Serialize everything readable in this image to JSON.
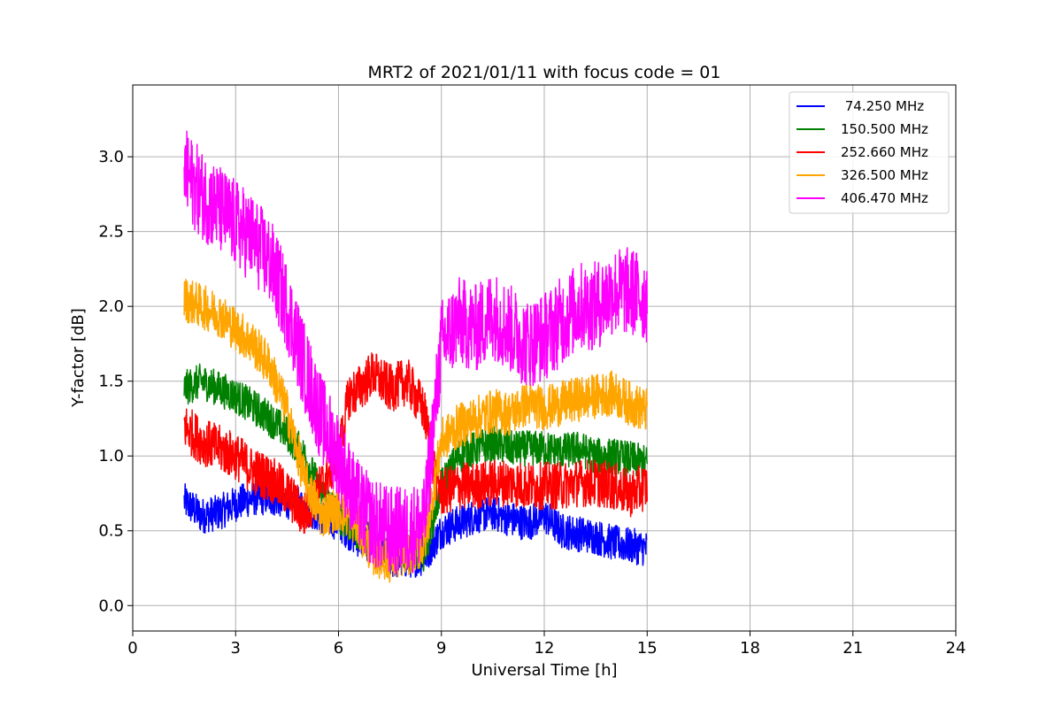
{
  "chart_data": {
    "type": "line",
    "title": "MRT2 of 2021/01/11 with focus code = 01",
    "xlabel": "Universal Time [h]",
    "ylabel": "Y-factor [dB]",
    "xlim": [
      0,
      24
    ],
    "ylim": [
      -0.17,
      3.48
    ],
    "xticks": [
      0,
      3,
      6,
      9,
      12,
      15,
      18,
      21,
      24
    ],
    "xtick_labels": [
      "0",
      "3",
      "6",
      "9",
      "12",
      "15",
      "18",
      "21",
      "24"
    ],
    "yticks": [
      0.0,
      0.5,
      1.0,
      1.5,
      2.0,
      2.5,
      3.0
    ],
    "ytick_labels": [
      "0.0",
      "0.5",
      "1.0",
      "1.5",
      "2.0",
      "2.5",
      "3.0"
    ],
    "grid": true,
    "legend_position": "upper right",
    "series": [
      {
        "name": " 74.250 MHz",
        "color": "#0000ff",
        "x": [
          1.5,
          2,
          2.5,
          3,
          3.5,
          4,
          4.5,
          5,
          5.5,
          6,
          6.5,
          7,
          7.5,
          8,
          8.5,
          9,
          9.5,
          10,
          10.5,
          11,
          11.5,
          12,
          12.5,
          13,
          13.5,
          14,
          14.5,
          15
        ],
        "y": [
          0.7,
          0.6,
          0.62,
          0.68,
          0.72,
          0.72,
          0.7,
          0.66,
          0.6,
          0.55,
          0.45,
          0.4,
          0.3,
          0.3,
          0.32,
          0.5,
          0.55,
          0.6,
          0.62,
          0.58,
          0.55,
          0.6,
          0.5,
          0.48,
          0.46,
          0.42,
          0.4,
          0.38
        ],
        "noise": 0.12
      },
      {
        "name": "150.500 MHz",
        "color": "#008000",
        "x": [
          1.5,
          2,
          2.5,
          3,
          3.5,
          4,
          4.5,
          5,
          5.5,
          6,
          6.5,
          7,
          7.5,
          8,
          8.5,
          9,
          9.5,
          10,
          10.5,
          11,
          11.5,
          12,
          12.5,
          13,
          13.5,
          14,
          14.5,
          15
        ],
        "y": [
          1.45,
          1.5,
          1.45,
          1.4,
          1.33,
          1.25,
          1.15,
          1.0,
          0.75,
          0.6,
          0.5,
          0.45,
          0.35,
          0.35,
          0.35,
          0.8,
          1.0,
          1.05,
          1.08,
          1.05,
          1.05,
          1.05,
          1.03,
          1.05,
          1.0,
          1.0,
          0.98,
          0.95
        ],
        "noise": 0.12
      },
      {
        "name": "252.660 MHz",
        "color": "#ff0000",
        "x": [
          1.5,
          2,
          2.5,
          3,
          3.5,
          4,
          4.5,
          5,
          5.5,
          6,
          6.3,
          6.6,
          7,
          7.5,
          8,
          8.5,
          8.8,
          9,
          9.5,
          10,
          10.5,
          11,
          11.5,
          12,
          12.5,
          13,
          13.5,
          14,
          14.5,
          15
        ],
        "y": [
          1.2,
          1.1,
          1.05,
          1.0,
          0.9,
          0.85,
          0.75,
          0.6,
          0.8,
          1.0,
          1.4,
          1.45,
          1.55,
          1.45,
          1.5,
          1.3,
          0.9,
          0.75,
          0.8,
          0.8,
          0.82,
          0.82,
          0.8,
          0.8,
          0.8,
          0.82,
          0.82,
          0.8,
          0.75,
          0.8
        ],
        "noise": 0.16
      },
      {
        "name": "326.500 MHz",
        "color": "#ffa500",
        "x": [
          1.5,
          2,
          2.5,
          3,
          3.5,
          4,
          4.5,
          5,
          5.5,
          6,
          6.5,
          7,
          7.5,
          8,
          8.5,
          9,
          9.5,
          10,
          10.5,
          11,
          11.5,
          12,
          12.5,
          13,
          13.5,
          14,
          14.5,
          15
        ],
        "y": [
          2.05,
          2.0,
          1.95,
          1.85,
          1.75,
          1.6,
          1.3,
          0.85,
          0.6,
          0.65,
          0.55,
          0.35,
          0.3,
          0.35,
          0.4,
          1.1,
          1.2,
          1.25,
          1.3,
          1.28,
          1.35,
          1.32,
          1.35,
          1.38,
          1.4,
          1.42,
          1.35,
          1.3
        ],
        "noise": 0.15
      },
      {
        "name": "406.470 MHz",
        "color": "#ff00ff",
        "x": [
          1.5,
          2,
          2.5,
          3,
          3.5,
          4,
          4.5,
          5,
          5.5,
          6,
          6.5,
          7,
          7.5,
          8,
          8.5,
          9,
          9.5,
          10,
          10.5,
          11,
          11.5,
          12,
          12.5,
          13,
          13.5,
          14,
          14.5,
          15
        ],
        "y": [
          2.9,
          2.75,
          2.65,
          2.55,
          2.45,
          2.3,
          2.0,
          1.6,
          1.25,
          1.0,
          0.7,
          0.55,
          0.5,
          0.5,
          0.55,
          1.75,
          1.9,
          1.85,
          1.95,
          1.85,
          1.75,
          1.8,
          1.9,
          2.0,
          2.0,
          2.1,
          2.1,
          2.05
        ],
        "noise": 0.3
      }
    ]
  }
}
